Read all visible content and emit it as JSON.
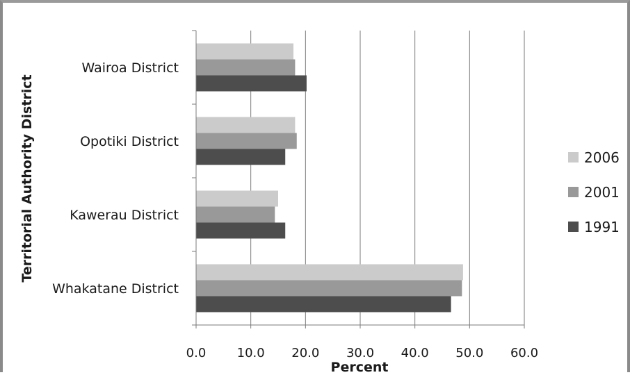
{
  "chart_data": {
    "type": "bar",
    "orientation": "horizontal",
    "categories": [
      "Wairoa District",
      "Opotiki District",
      "Kawerau District",
      "Whakatane District"
    ],
    "series": [
      {
        "name": "2006",
        "values": [
          17.8,
          18.1,
          15.0,
          48.8
        ],
        "color": "#cbcbcb"
      },
      {
        "name": "2001",
        "values": [
          18.1,
          18.4,
          14.4,
          48.6
        ],
        "color": "#999999"
      },
      {
        "name": "1991",
        "values": [
          20.2,
          16.3,
          16.3,
          46.6
        ],
        "color": "#4d4d4d"
      }
    ],
    "title": "",
    "xlabel": "Percent",
    "ylabel": "Territorial Authority District",
    "xlim": [
      0,
      60
    ],
    "xticks": [
      "0.0",
      "10.0",
      "20.0",
      "30.0",
      "40.0",
      "50.0",
      "60.0"
    ],
    "grid": "vertical",
    "legend": "right"
  }
}
